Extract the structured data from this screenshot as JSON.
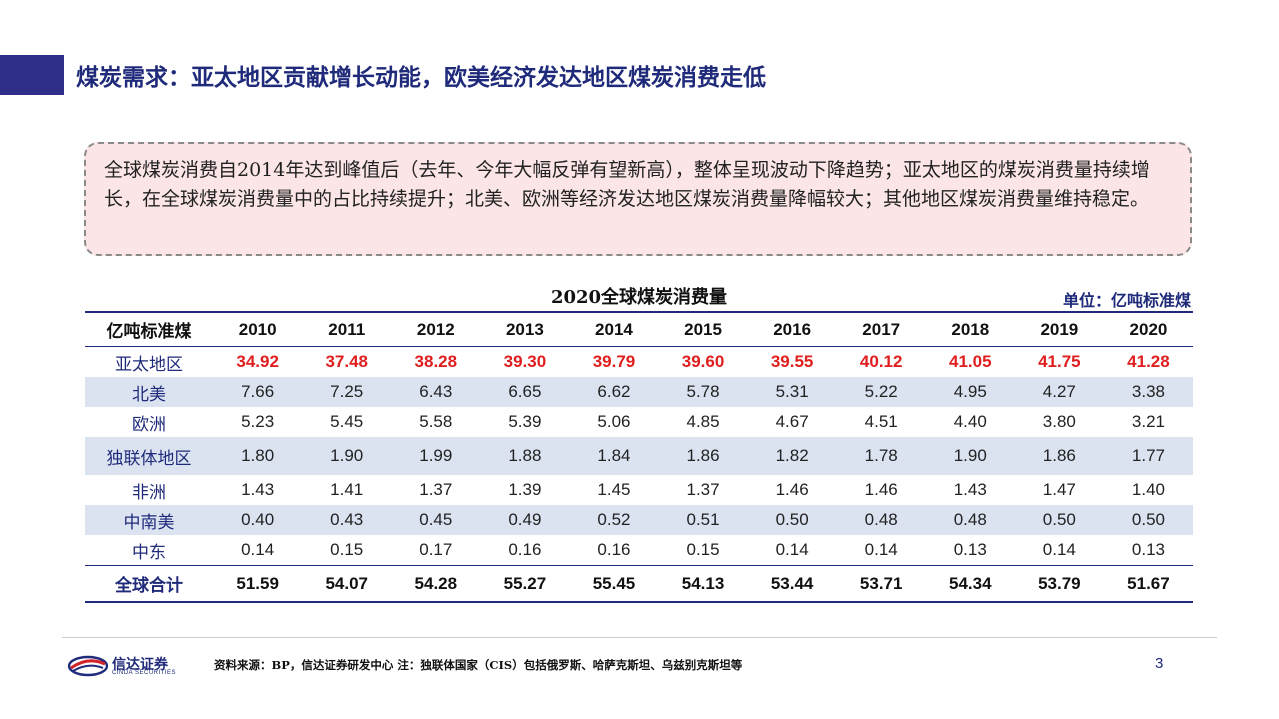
{
  "slide": {
    "title": "煤炭需求：亚太地区贡献增长动能，欧美经济发达地区煤炭消费走低",
    "page_number": "3"
  },
  "summary": {
    "text": "全球煤炭消费自2014年达到峰值后（去年、今年大幅反弹有望新高），整体呈现波动下降趋势；亚太地区的煤炭消费量持续增长，在全球煤炭消费量中的占比持续提升；北美、欧洲等经济发达地区煤炭消费量降幅较大；其他地区煤炭消费量维持稳定。"
  },
  "table": {
    "title": "2020全球煤炭消费量",
    "unit": "单位：亿吨标准煤",
    "corner_label": "亿吨标准煤",
    "years": [
      "2010",
      "2011",
      "2012",
      "2013",
      "2014",
      "2015",
      "2016",
      "2017",
      "2018",
      "2019",
      "2020"
    ],
    "rows": [
      {
        "region": "亚太地区",
        "values": [
          "34.92",
          "37.48",
          "38.28",
          "39.30",
          "39.79",
          "39.60",
          "39.55",
          "40.12",
          "41.05",
          "41.75",
          "41.28"
        ]
      },
      {
        "region": "北美",
        "values": [
          "7.66",
          "7.25",
          "6.43",
          "6.65",
          "6.62",
          "5.78",
          "5.31",
          "5.22",
          "4.95",
          "4.27",
          "3.38"
        ]
      },
      {
        "region": "欧洲",
        "values": [
          "5.23",
          "5.45",
          "5.58",
          "5.39",
          "5.06",
          "4.85",
          "4.67",
          "4.51",
          "4.40",
          "3.80",
          "3.21"
        ]
      },
      {
        "region": "独联体地区",
        "values": [
          "1.80",
          "1.90",
          "1.99",
          "1.88",
          "1.84",
          "1.86",
          "1.82",
          "1.78",
          "1.90",
          "1.86",
          "1.77"
        ]
      },
      {
        "region": "非洲",
        "values": [
          "1.43",
          "1.41",
          "1.37",
          "1.39",
          "1.45",
          "1.37",
          "1.46",
          "1.46",
          "1.43",
          "1.47",
          "1.40"
        ]
      },
      {
        "region": "中南美",
        "values": [
          "0.40",
          "0.43",
          "0.45",
          "0.49",
          "0.52",
          "0.51",
          "0.50",
          "0.48",
          "0.48",
          "0.50",
          "0.50"
        ]
      },
      {
        "region": "中东",
        "values": [
          "0.14",
          "0.15",
          "0.17",
          "0.16",
          "0.16",
          "0.15",
          "0.14",
          "0.14",
          "0.13",
          "0.14",
          "0.13"
        ]
      }
    ],
    "total": {
      "region": "全球合计",
      "values": [
        "51.59",
        "54.07",
        "54.28",
        "55.27",
        "55.45",
        "54.13",
        "53.44",
        "53.71",
        "54.34",
        "53.79",
        "51.67"
      ]
    }
  },
  "footer": {
    "logo_cn": "信达证券",
    "logo_en": "CINDA SECURITIES",
    "source": "资料来源：BP，信达证券研发中心 注：独联体国家（CIS）包括俄罗斯、哈萨克斯坦、乌兹别克斯坦等"
  },
  "colors": {
    "brand_navy": "#1f2a7a",
    "title_block": "#2e2d8a",
    "summary_bg": "#fbe5e6",
    "row_shade": "#dbe3f1",
    "highlight_red": "#e01e1e",
    "logo_red": "#d2232a"
  }
}
